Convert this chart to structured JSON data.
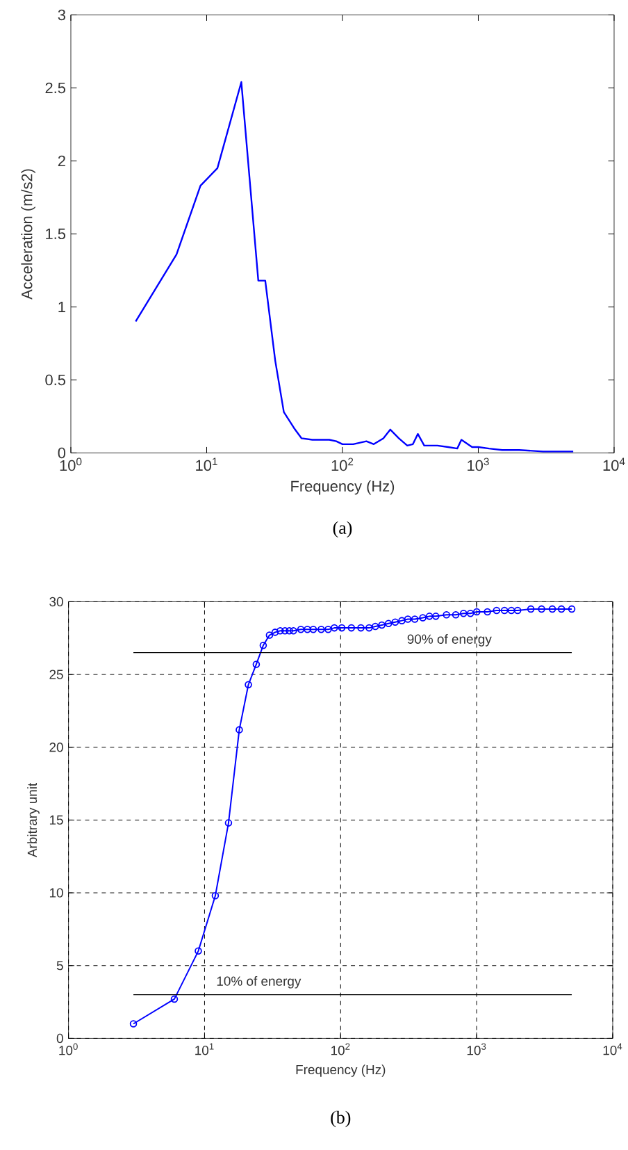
{
  "chart_data": [
    {
      "type": "line",
      "xlabel": "Frequency (Hz)",
      "ylabel": "Acceleration (m/s2)",
      "log": "x",
      "xlim": [
        1,
        10000
      ],
      "ylim": [
        0,
        3
      ],
      "xticks": [
        {
          "value": 1,
          "label": "10$^{0}$"
        },
        {
          "value": 10,
          "label": "10$^{1}$"
        },
        {
          "value": 100,
          "label": "10$^{2}$"
        },
        {
          "value": 1000,
          "label": "10$^{3}$"
        },
        {
          "value": 10000,
          "label": "10$^{4}$"
        }
      ],
      "yticks": [
        0,
        0.5,
        1,
        1.5,
        2,
        2.5,
        3
      ],
      "annotations": [
        "(a)"
      ],
      "series": [
        {
          "color": "#0000ff",
          "x": [
            3,
            6,
            9,
            12,
            18,
            24,
            27,
            32,
            37,
            44,
            50,
            60,
            80,
            90,
            100,
            120,
            150,
            170,
            200,
            225,
            260,
            300,
            330,
            359,
            400,
            500,
            600,
            700,
            751,
            900,
            1000,
            1200,
            1500,
            2000,
            3000,
            5000
          ],
          "values": [
            0.9,
            1.36,
            1.83,
            1.95,
            2.54,
            1.18,
            1.18,
            0.63,
            0.28,
            0.17,
            0.1,
            0.09,
            0.09,
            0.08,
            0.06,
            0.06,
            0.08,
            0.06,
            0.1,
            0.16,
            0.1,
            0.05,
            0.06,
            0.13,
            0.05,
            0.05,
            0.04,
            0.03,
            0.09,
            0.04,
            0.04,
            0.03,
            0.02,
            0.02,
            0.01,
            0.01
          ]
        }
      ]
    },
    {
      "type": "line",
      "xlabel": "Frequency (Hz)",
      "ylabel": "Arbitrary unit",
      "log": "x",
      "grid": true,
      "marker": "circle",
      "xlim": [
        1,
        10000
      ],
      "ylim": [
        0,
        30
      ],
      "xticks": [
        {
          "value": 1,
          "label": "10$^{0}$"
        },
        {
          "value": 10,
          "label": "10$^{1}$"
        },
        {
          "value": 100,
          "label": "10$^{2}$"
        },
        {
          "value": 1000,
          "label": "10$^{3}$"
        },
        {
          "value": 10000,
          "label": "10$^{4}$"
        }
      ],
      "yticks": [
        0,
        5,
        10,
        15,
        20,
        25,
        30
      ],
      "annotations": [
        {
          "text": "90% of energy",
          "x": 630,
          "y": 26.5
        },
        {
          "text": "10% of energy",
          "x": 25,
          "y": 3
        },
        "(b)"
      ],
      "series": [
        {
          "color": "#0000ff",
          "x": [
            3,
            6,
            9,
            12,
            15,
            18,
            21,
            24,
            27,
            30,
            33,
            36,
            39,
            42,
            45,
            51,
            57,
            63,
            72,
            81,
            90,
            102,
            120,
            141,
            162,
            180,
            201,
            225,
            252,
            282,
            312,
            351,
            402,
            450,
            501,
            600,
            702,
            801,
            900,
            1002,
            1200,
            1401,
            1602,
            1800,
            2001,
            2502,
            3000,
            3600,
            4200,
            5001
          ],
          "values": [
            1.0,
            2.7,
            6.0,
            9.8,
            14.8,
            21.2,
            24.3,
            25.7,
            27.0,
            27.7,
            27.9,
            28.0,
            28.0,
            28.0,
            28.0,
            28.1,
            28.1,
            28.1,
            28.1,
            28.1,
            28.2,
            28.2,
            28.2,
            28.2,
            28.2,
            28.3,
            28.4,
            28.5,
            28.6,
            28.7,
            28.8,
            28.8,
            28.9,
            29.0,
            29.0,
            29.1,
            29.1,
            29.2,
            29.2,
            29.3,
            29.3,
            29.4,
            29.4,
            29.4,
            29.4,
            29.5,
            29.5,
            29.5,
            29.5,
            29.5
          ]
        },
        {
          "color": "#000000",
          "marker": "none",
          "x": [
            3,
            5000
          ],
          "values": [
            26.5,
            26.5
          ]
        },
        {
          "color": "#000000",
          "marker": "none",
          "x": [
            3,
            5000
          ],
          "values": [
            3,
            3
          ]
        }
      ]
    }
  ]
}
